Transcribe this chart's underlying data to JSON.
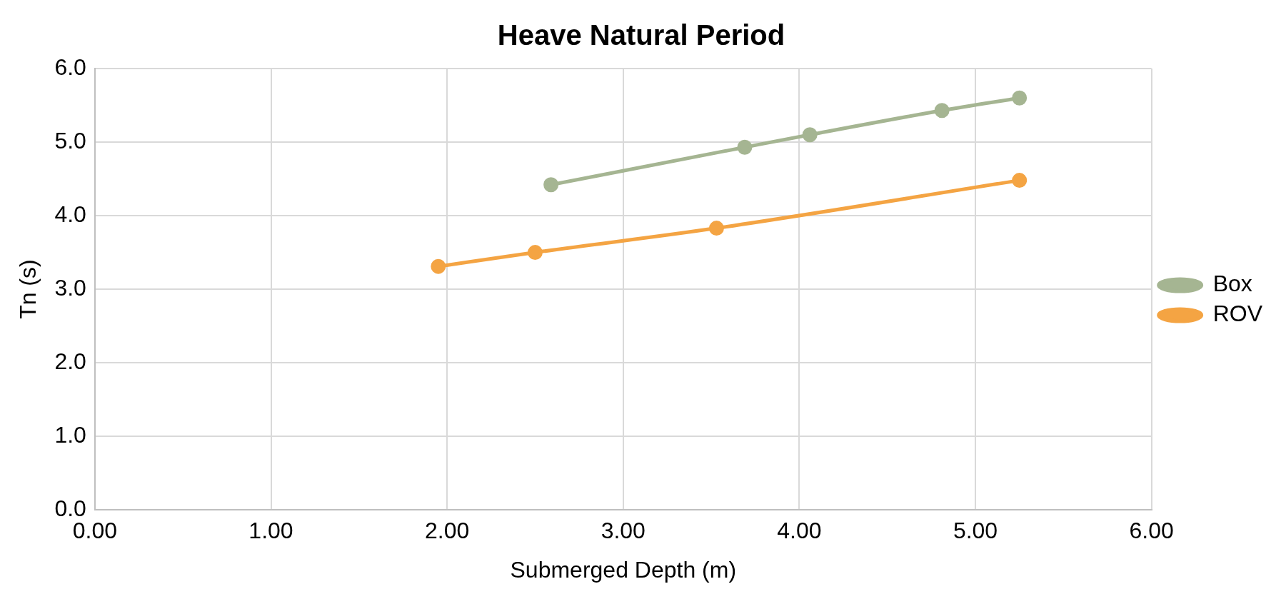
{
  "chart_data": {
    "type": "line",
    "title": "Heave Natural Period",
    "xlabel": "Submerged Depth (m)",
    "ylabel": "Tn (s)",
    "xlim": [
      0,
      6
    ],
    "xticks": [
      {
        "value": 0,
        "label": "0.00"
      },
      {
        "value": 1,
        "label": "1.00"
      },
      {
        "value": 2,
        "label": "2.00"
      },
      {
        "value": 3,
        "label": "3.00"
      },
      {
        "value": 4,
        "label": "4.00"
      },
      {
        "value": 5,
        "label": "5.00"
      },
      {
        "value": 6,
        "label": "6.00"
      }
    ],
    "ylim": [
      0,
      6
    ],
    "yticks": [
      {
        "value": 0,
        "label": "0.0"
      },
      {
        "value": 1,
        "label": "1.0"
      },
      {
        "value": 2,
        "label": "2.0"
      },
      {
        "value": 3,
        "label": "3.0"
      },
      {
        "value": 4,
        "label": "4.0"
      },
      {
        "value": 5,
        "label": "5.0"
      },
      {
        "value": 6,
        "label": "6.0"
      }
    ],
    "grid": true,
    "legend": "right",
    "marker": "circle",
    "line_style": "solid",
    "series": [
      {
        "name": "Box",
        "color": "#a5b592",
        "x": [
          2.59,
          3.69,
          4.06,
          4.81,
          5.25
        ],
        "values": [
          4.42,
          4.93,
          5.1,
          5.43,
          5.6
        ]
      },
      {
        "name": "ROV",
        "color": "#f4a443",
        "x": [
          1.95,
          2.5,
          3.53,
          5.25
        ],
        "values": [
          3.31,
          3.5,
          3.83,
          4.48
        ]
      }
    ]
  }
}
